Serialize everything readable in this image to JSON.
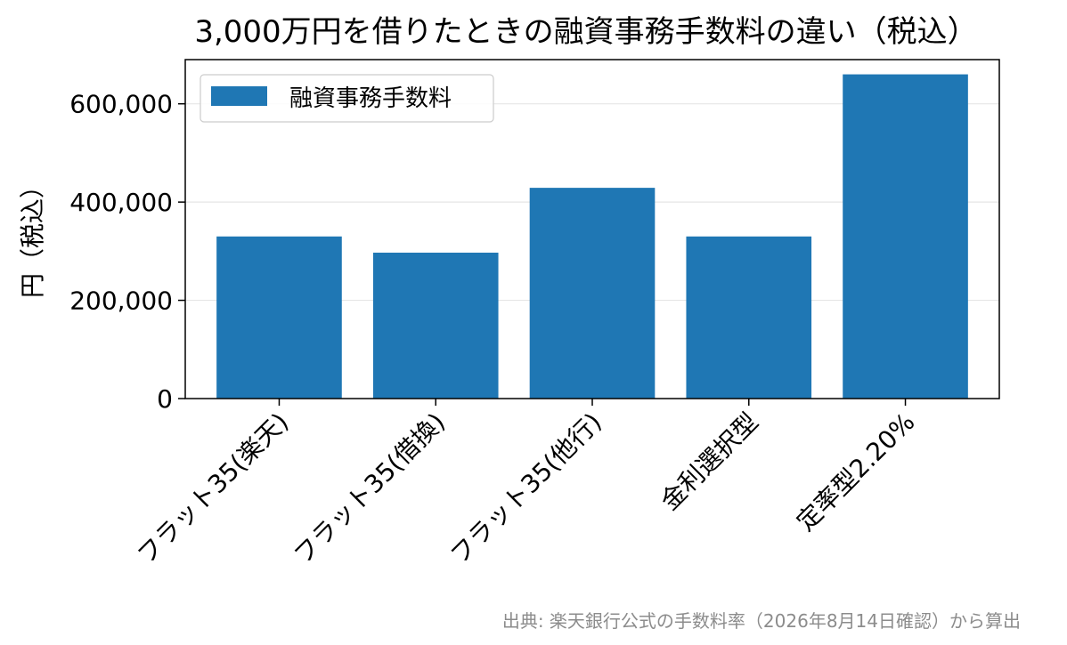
{
  "chart_data": {
    "type": "bar",
    "title": "3,000万円を借りたときの融資事務手数料の違い（税込）",
    "xlabel": "",
    "ylabel": "円（税込）",
    "categories": [
      "フラット35(楽天)",
      "フラット35(借換)",
      "フラット35(他行)",
      "金利選択型",
      "定率型2.20%"
    ],
    "series": [
      {
        "name": "融資事務手数料",
        "values": [
          330000,
          297000,
          429000,
          330000,
          660000
        ],
        "color": "#1f77b4"
      }
    ],
    "ylim": [
      0,
      690000
    ],
    "yticks": [
      0,
      200000,
      400000,
      600000
    ],
    "ytick_labels": [
      "0",
      "200,000",
      "400,000",
      "600,000"
    ],
    "grid": "horizontal",
    "legend_position": "top-left"
  },
  "source_note": "出典: 楽天銀行公式の手数料率（2026年8月14日確認）から算出"
}
